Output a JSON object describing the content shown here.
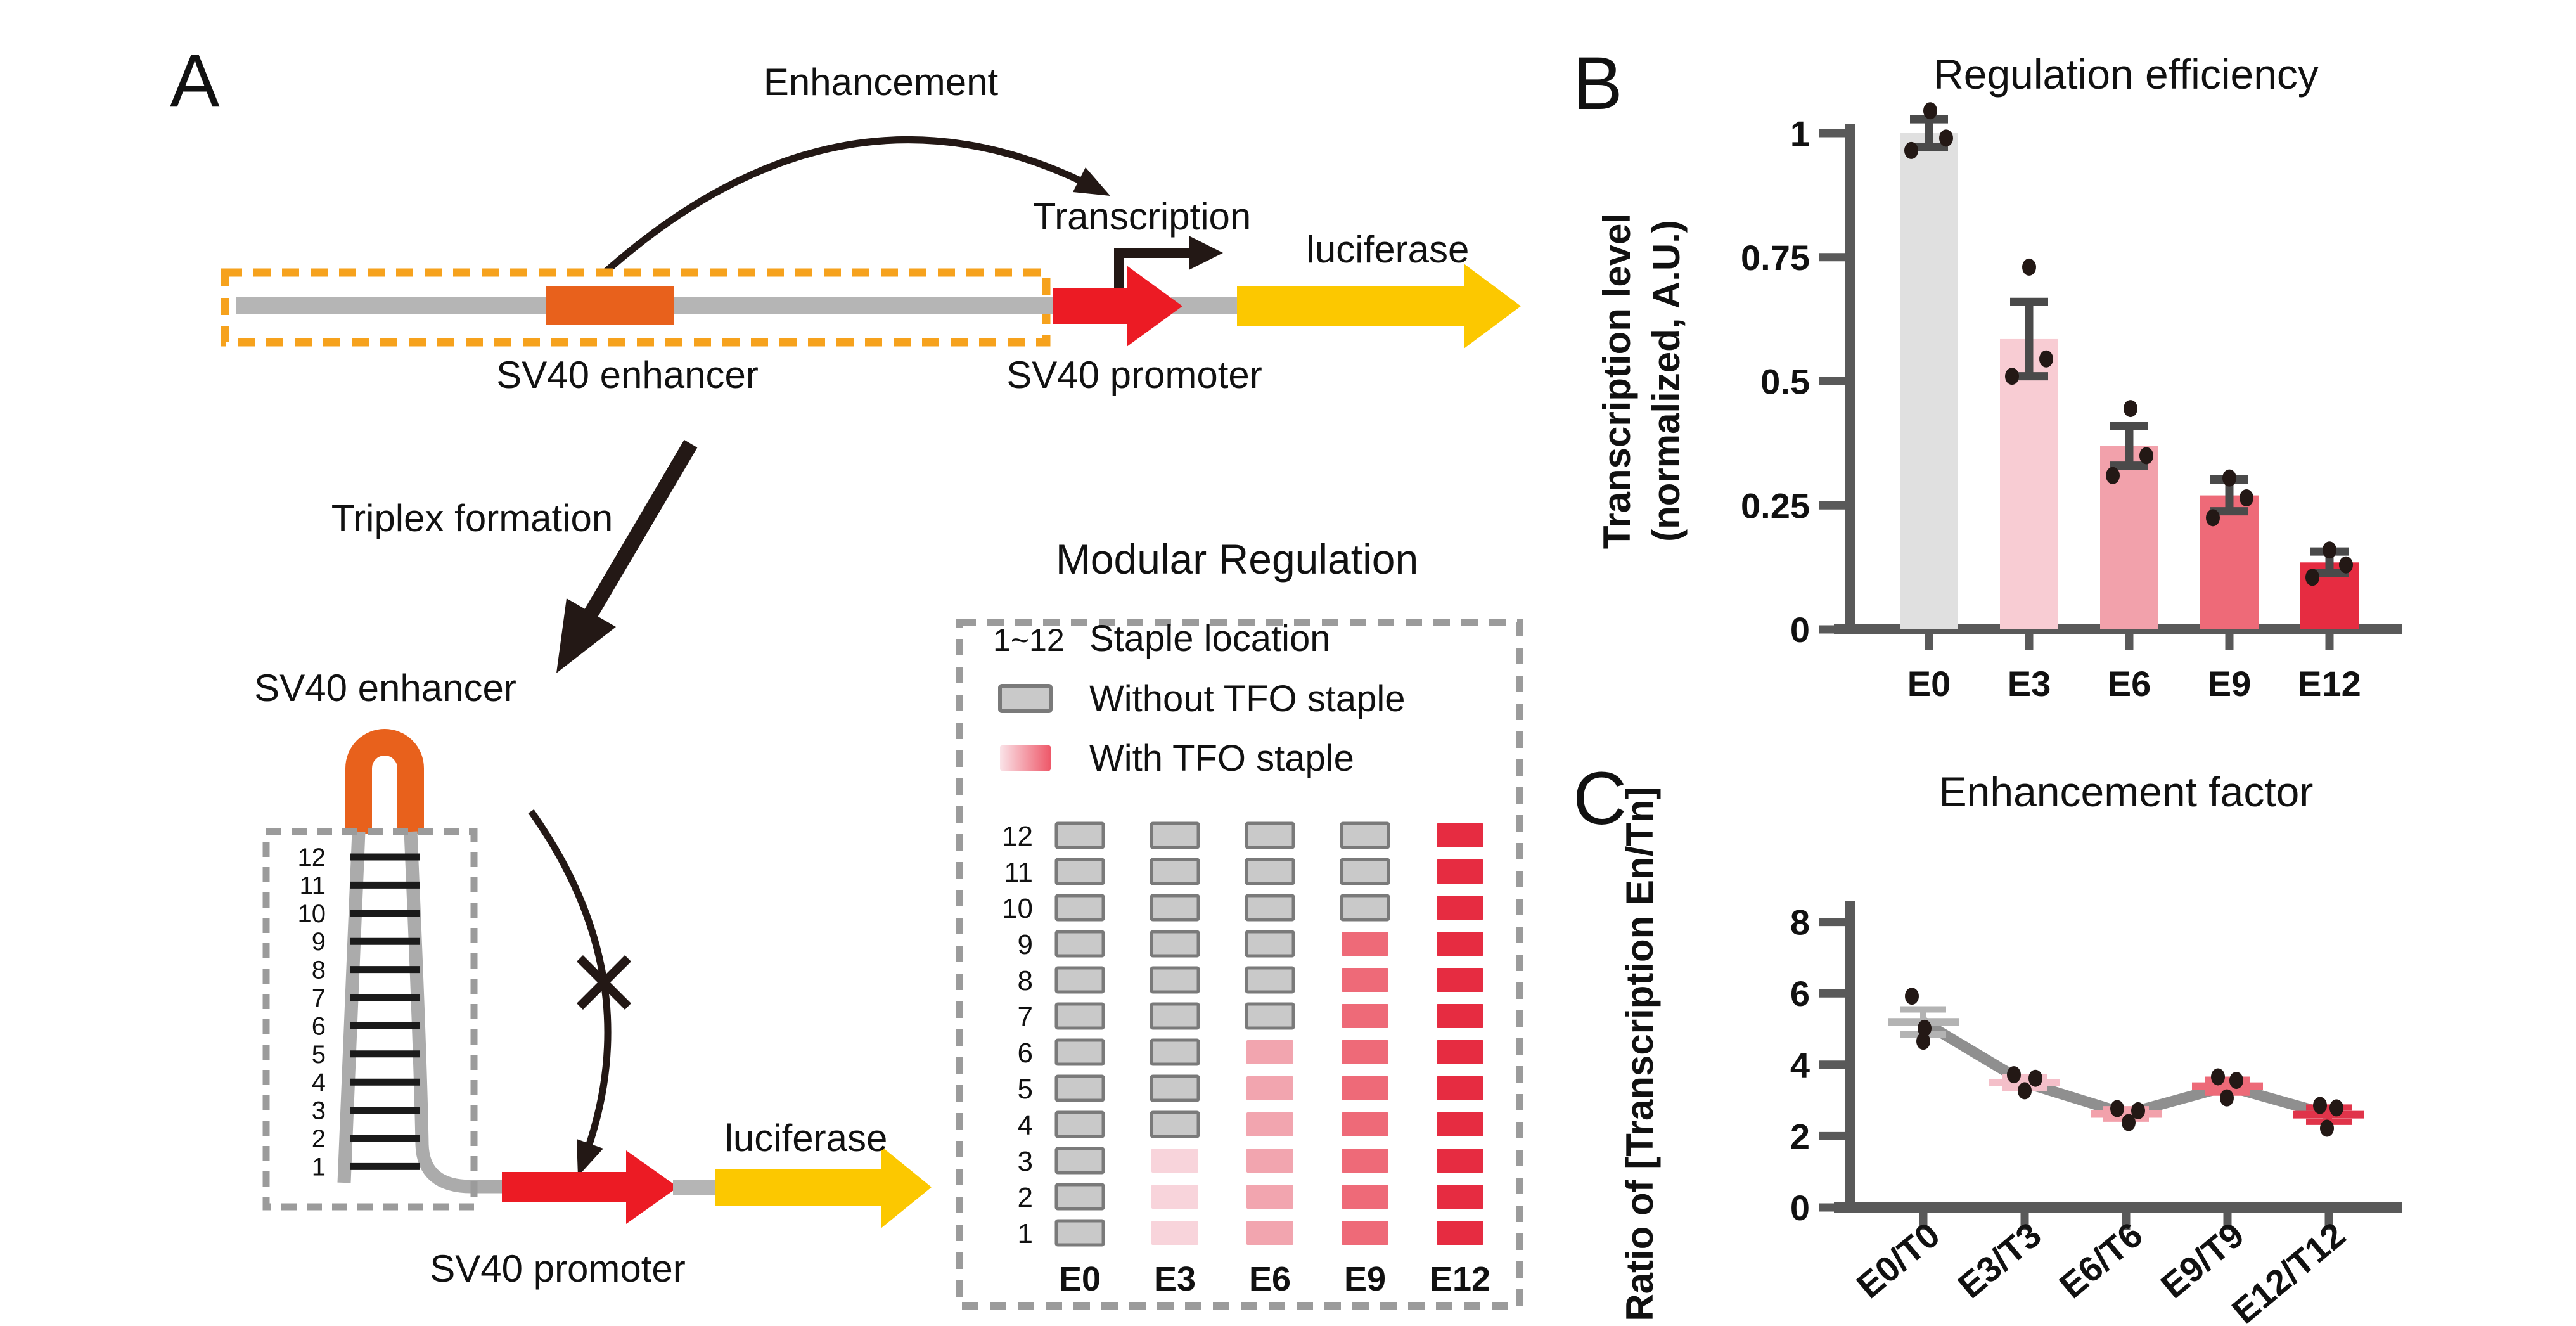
{
  "panelA": {
    "label": "A",
    "top": {
      "enhancement": "Enhancement",
      "transcription": "Transcription",
      "luciferase": "luciferase",
      "enhancer": "SV40 enhancer",
      "promoter": "SV40 promoter"
    },
    "triplex": "Triplex formation",
    "hairpin": {
      "enhancer": "SV40 enhancer",
      "promoter": "SV40 promoter",
      "luciferase": "luciferase",
      "rungs": [
        "12",
        "11",
        "10",
        "9",
        "8",
        "7",
        "6",
        "5",
        "4",
        "3",
        "2",
        "1"
      ]
    },
    "colors": {
      "orange": "#E8611C",
      "dash_orange": "#F6A21D",
      "red": "#EC1B24",
      "yellow": "#FCC800",
      "bar_gray": "#B5B5B5",
      "strand_gray": "#ABABAB",
      "dash_gray": "#9B9B9B",
      "ink": "#231815"
    }
  },
  "modular": {
    "title": "Modular Regulation",
    "legend_range": "1~12",
    "staple_location_label": "Staple location",
    "without_label": "Without TFO staple",
    "with_label": "With TFO staple",
    "rows": [
      "12",
      "11",
      "10",
      "9",
      "8",
      "7",
      "6",
      "5",
      "4",
      "3",
      "2",
      "1"
    ],
    "columns": [
      {
        "label": "E0",
        "tfo_count": 0,
        "tfo_color": "#C9C9C9"
      },
      {
        "label": "E3",
        "tfo_count": 3,
        "tfo_color": "#F8D4DB"
      },
      {
        "label": "E6",
        "tfo_count": 6,
        "tfo_color": "#F2A5AF"
      },
      {
        "label": "E9",
        "tfo_count": 9,
        "tfo_color": "#EE6A78"
      },
      {
        "label": "E12",
        "tfo_count": 12,
        "tfo_color": "#E62C41"
      }
    ],
    "gray_fill": "#C9C9C9",
    "gray_stroke": "#7A7A7A",
    "gradient": [
      "#FAE3E8",
      "#EE5869"
    ]
  },
  "chart_data": [
    {
      "type": "bar",
      "panel_label": "B",
      "title": "Regulation efficiency",
      "ylabel_lines": [
        "Transcription level",
        "(normalized, A.U.)"
      ],
      "categories": [
        "E0",
        "E3",
        "E6",
        "E9",
        "E12"
      ],
      "values": [
        1.0,
        0.585,
        0.37,
        0.27,
        0.135
      ],
      "errors": [
        0.028,
        0.075,
        0.04,
        0.032,
        0.022
      ],
      "points": [
        [
          0.965,
          1.045,
          0.99
        ],
        [
          0.51,
          0.73,
          0.545
        ],
        [
          0.31,
          0.445,
          0.35
        ],
        [
          0.225,
          0.305,
          0.265
        ],
        [
          0.105,
          0.16,
          0.13
        ]
      ],
      "point_dx": [
        [
          -28,
          2,
          27
        ],
        [
          -27,
          0,
          27
        ],
        [
          -26,
          2,
          27
        ],
        [
          -26,
          0,
          27
        ],
        [
          -27,
          0,
          26
        ]
      ],
      "bar_colors": [
        "#E0E0E0",
        "#F8CCD3",
        "#F2A1AB",
        "#EE6A78",
        "#E62C41"
      ],
      "ytick_labels": [
        "0",
        "0.25",
        "0.5",
        "0.75",
        "1"
      ],
      "ytick_values": [
        0,
        0.25,
        0.5,
        0.75,
        1
      ],
      "ylim": [
        0,
        1.05
      ],
      "grid": false,
      "legend_position": "none",
      "error_color": "#4A4A4A",
      "point_color": "#231815",
      "axis_color": "#595959"
    },
    {
      "type": "line",
      "panel_label": "C",
      "title": "Enhancement factor",
      "ylabel": "Ratio of [Transcription En/Tn]",
      "categories": [
        "E0/T0",
        "E3/T3",
        "E6/T6",
        "E9/T9",
        "E12/T12"
      ],
      "means": [
        5.2,
        3.5,
        2.62,
        3.4,
        2.6
      ],
      "errors": [
        0.35,
        0.16,
        0.13,
        0.18,
        0.2
      ],
      "points": [
        [
          5.92,
          5.02,
          4.66
        ],
        [
          3.72,
          3.62,
          3.27
        ],
        [
          2.77,
          2.71,
          2.38
        ],
        [
          3.66,
          3.56,
          3.07
        ],
        [
          2.86,
          2.79,
          2.22
        ]
      ],
      "point_dx": [
        [
          -18,
          2,
          0
        ],
        [
          -17,
          17,
          0
        ],
        [
          -14,
          19,
          4
        ],
        [
          -15,
          14,
          -1
        ],
        [
          -14,
          12,
          -3
        ]
      ],
      "marker_colors": [
        "#B3B3B3",
        "#F4BFC9",
        "#F2A1AB",
        "#ED6A78",
        "#E0344A"
      ],
      "trend_color": "#8F8F8F",
      "ytick_labels": [
        "0",
        "2",
        "4",
        "6",
        "8"
      ],
      "ytick_values": [
        0,
        2,
        4,
        6,
        8
      ],
      "ylim": [
        0,
        8.5
      ],
      "grid": false,
      "legend_position": "none",
      "point_color": "#231815",
      "axis_color": "#595959"
    }
  ]
}
